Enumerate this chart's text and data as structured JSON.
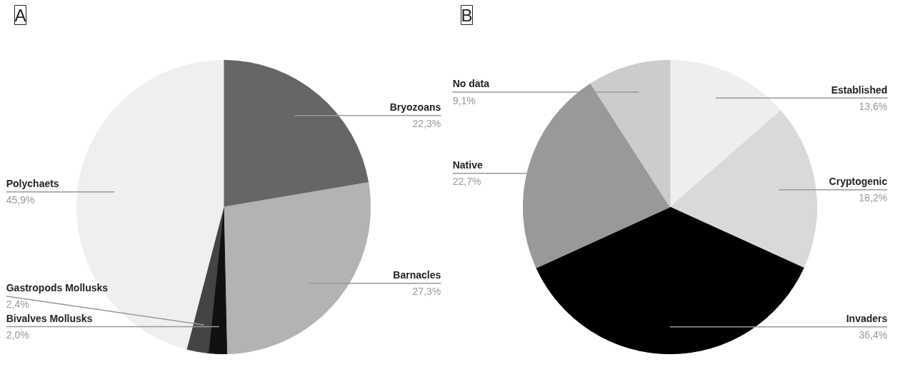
{
  "chart_data": [
    {
      "type": "pie",
      "title": "A",
      "categories": [
        "Bryozoans",
        "Barnacles",
        "Bivalves Mollusks",
        "Gastropods Mollusks",
        "Polychaets"
      ],
      "values": [
        22.3,
        27.3,
        2.0,
        2.4,
        45.9
      ],
      "value_labels": [
        "22,3%",
        "27,3%",
        "2,0%",
        "2,4%",
        "45,9%"
      ],
      "colors": [
        "#666666",
        "#b3b3b3",
        "#111111",
        "#444444",
        "#efefef"
      ]
    },
    {
      "type": "pie",
      "title": "B",
      "categories": [
        "Established",
        "Cryptogenic",
        "Invaders",
        "Native",
        "No data"
      ],
      "values": [
        13.6,
        18.2,
        36.4,
        22.7,
        9.1
      ],
      "value_labels": [
        "13,6%",
        "18,2%",
        "36,4%",
        "22,7%",
        "9,1%"
      ],
      "colors": [
        "#eeeeee",
        "#d9d9d9",
        "#000000",
        "#999999",
        "#cccccc"
      ]
    }
  ]
}
